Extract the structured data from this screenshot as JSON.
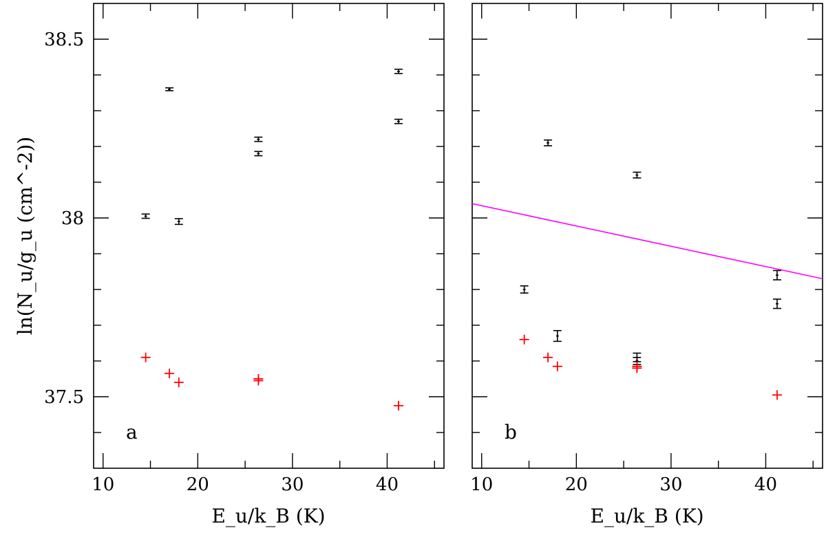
{
  "chart_data": [
    {
      "type": "scatter",
      "panel_label": "a",
      "xlabel": "E_u/k_B (K)",
      "ylabel": "ln(N_u/g_u (cm^-2))",
      "xlim": [
        9,
        46
      ],
      "ylim": [
        37.3,
        38.6
      ],
      "xticks": [
        10,
        20,
        30,
        40
      ],
      "xtick_labels": [
        "10",
        "20",
        "30",
        "40"
      ],
      "yticks": [
        37.5,
        38,
        38.5
      ],
      "ytick_labels": [
        "37.5",
        "38",
        "38.5"
      ],
      "series": [
        {
          "name": "black-errorbars",
          "color": "#000000",
          "points": [
            {
              "x": 14.5,
              "y": 38.005,
              "err": 0.006
            },
            {
              "x": 17.0,
              "y": 38.36,
              "err": 0.004
            },
            {
              "x": 18.0,
              "y": 37.99,
              "err": 0.008
            },
            {
              "x": 26.4,
              "y": 38.22,
              "err": 0.006
            },
            {
              "x": 26.4,
              "y": 38.18,
              "err": 0.006
            },
            {
              "x": 41.2,
              "y": 38.41,
              "err": 0.006
            },
            {
              "x": 41.2,
              "y": 38.27,
              "err": 0.006
            }
          ]
        },
        {
          "name": "red-crosses",
          "color": "#ff0000",
          "points": [
            {
              "x": 14.5,
              "y": 37.61
            },
            {
              "x": 17.0,
              "y": 37.565
            },
            {
              "x": 18.0,
              "y": 37.54
            },
            {
              "x": 26.4,
              "y": 37.55
            },
            {
              "x": 26.4,
              "y": 37.545
            },
            {
              "x": 41.2,
              "y": 37.475
            }
          ]
        }
      ]
    },
    {
      "type": "scatter",
      "panel_label": "b",
      "xlabel": "E_u/k_B (K)",
      "xlim": [
        9,
        46
      ],
      "ylim": [
        37.3,
        38.6
      ],
      "xticks": [
        10,
        20,
        30,
        40
      ],
      "xtick_labels": [
        "10",
        "20",
        "30",
        "40"
      ],
      "series": [
        {
          "name": "black-errorbars",
          "color": "#000000",
          "points": [
            {
              "x": 14.5,
              "y": 37.8,
              "err": 0.01
            },
            {
              "x": 17.0,
              "y": 38.21,
              "err": 0.008
            },
            {
              "x": 18.0,
              "y": 37.67,
              "err": 0.015
            },
            {
              "x": 26.4,
              "y": 38.12,
              "err": 0.008
            },
            {
              "x": 26.4,
              "y": 37.61,
              "err": 0.012
            },
            {
              "x": 26.4,
              "y": 37.6,
              "err": 0.01
            },
            {
              "x": 41.2,
              "y": 37.84,
              "err": 0.013
            },
            {
              "x": 41.2,
              "y": 37.76,
              "err": 0.013
            }
          ]
        },
        {
          "name": "red-crosses",
          "color": "#ff0000",
          "points": [
            {
              "x": 14.5,
              "y": 37.66
            },
            {
              "x": 17.0,
              "y": 37.61
            },
            {
              "x": 18.0,
              "y": 37.585
            },
            {
              "x": 26.4,
              "y": 37.585
            },
            {
              "x": 26.4,
              "y": 37.58
            },
            {
              "x": 41.2,
              "y": 37.505
            }
          ]
        }
      ],
      "fit_line": {
        "color": "#ff00ff",
        "x": [
          9,
          46
        ],
        "y": [
          38.04,
          37.83
        ]
      }
    }
  ]
}
